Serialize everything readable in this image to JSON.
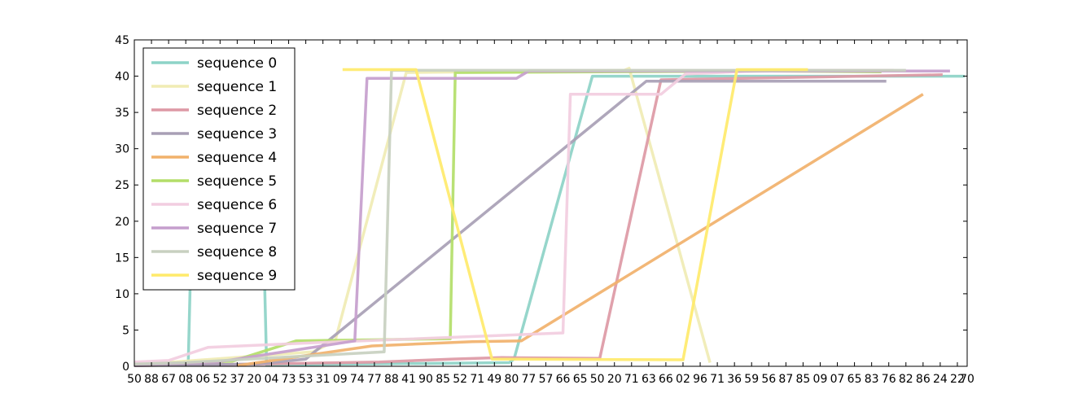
{
  "chart_data": {
    "type": "line",
    "title": "",
    "xlabel": "",
    "ylabel": "",
    "ylim": [
      0,
      45
    ],
    "yticks": [
      "0",
      "5",
      "10",
      "15",
      "20",
      "25",
      "30",
      "35",
      "40",
      "45"
    ],
    "xlim": [
      0,
      34
    ],
    "xticks": [
      "50",
      "88",
      "67",
      "08",
      "06",
      "52",
      "37",
      "20",
      "04",
      "73",
      "53",
      "31",
      "09",
      "74",
      "77",
      "88",
      "41",
      "90",
      "85",
      "52",
      "71",
      "49",
      "80",
      "77",
      "57",
      "66",
      "65",
      "50",
      "20",
      "71",
      "63",
      "66",
      "02",
      "96",
      "71",
      "36",
      "59",
      "56",
      "87",
      "85",
      "09",
      "07",
      "65",
      "83",
      "76",
      "82",
      "86",
      "24",
      "22",
      "70"
    ],
    "xtick_positions": [
      0,
      0.7,
      1.4,
      2.1,
      2.8,
      3.5,
      4.2,
      4.9,
      5.6,
      6.3,
      7.0,
      7.7,
      8.4,
      9.1,
      9.8,
      10.5,
      11.2,
      11.9,
      12.6,
      13.3,
      14.0,
      14.7,
      15.4,
      16.1,
      16.8,
      17.5,
      18.2,
      18.9,
      19.6,
      20.3,
      21.0,
      21.7,
      22.4,
      23.1,
      23.8,
      24.5,
      25.2,
      25.9,
      26.6,
      27.3,
      28.0,
      28.7,
      29.4,
      30.1,
      30.8,
      31.5,
      32.2,
      32.9,
      33.6,
      34.0
    ],
    "grid": false,
    "legend_position": "top-left",
    "series": [
      {
        "name": "sequence 0",
        "color": "#8dd3c7",
        "points": [
          [
            0,
            0.3
          ],
          [
            2.2,
            0.3
          ],
          [
            2.3,
            14
          ],
          [
            5.3,
            14
          ],
          [
            5.4,
            0.2
          ],
          [
            15.3,
            0.5
          ],
          [
            15.5,
            1.0
          ],
          [
            18.7,
            40
          ],
          [
            25,
            40
          ],
          [
            33.9,
            40
          ]
        ]
      },
      {
        "name": "sequence 1",
        "color": "#f0ecb4",
        "points": [
          [
            0,
            0.2
          ],
          [
            7.3,
            2.0
          ],
          [
            8.2,
            3.5
          ],
          [
            11.1,
            40.5
          ],
          [
            20,
            40.8
          ],
          [
            20.2,
            41.1
          ],
          [
            23.5,
            0.5
          ]
        ]
      },
      {
        "name": "sequence 2",
        "color": "#dd99a5",
        "points": [
          [
            0,
            0.1
          ],
          [
            5,
            0.3
          ],
          [
            10,
            0.6
          ],
          [
            13,
            1.0
          ],
          [
            15,
            1.2
          ],
          [
            19,
            1.1
          ],
          [
            21.5,
            39.5
          ],
          [
            33,
            40.2
          ]
        ]
      },
      {
        "name": "sequence 3",
        "color": "#a89fb5",
        "points": [
          [
            0,
            0.1
          ],
          [
            5,
            0.3
          ],
          [
            7,
            1.0
          ],
          [
            20.9,
            39.3
          ],
          [
            30.7,
            39.3
          ]
        ]
      },
      {
        "name": "sequence 4",
        "color": "#f1b16b",
        "points": [
          [
            4.2,
            0.1
          ],
          [
            9.7,
            2.8
          ],
          [
            13.8,
            3.4
          ],
          [
            15.8,
            3.5
          ],
          [
            32.2,
            37.5
          ]
        ]
      },
      {
        "name": "sequence 5",
        "color": "#b3de69",
        "points": [
          [
            0,
            0.2
          ],
          [
            4,
            0.7
          ],
          [
            6.6,
            3.5
          ],
          [
            12.9,
            3.8
          ],
          [
            13.1,
            40.5
          ],
          [
            26,
            40.7
          ],
          [
            30.5,
            40.6
          ]
        ]
      },
      {
        "name": "sequence 6",
        "color": "#f2cde0",
        "points": [
          [
            0,
            0.6
          ],
          [
            1.4,
            0.8
          ],
          [
            3.0,
            2.6
          ],
          [
            7.0,
            3.2
          ],
          [
            17.5,
            4.6
          ],
          [
            17.8,
            37.5
          ],
          [
            21.5,
            37.5
          ],
          [
            22.5,
            40.3
          ],
          [
            26.0,
            40.8
          ],
          [
            31.0,
            40.8
          ]
        ]
      },
      {
        "name": "sequence 7",
        "color": "#c59ecd",
        "points": [
          [
            0,
            0.2
          ],
          [
            3.4,
            0.6
          ],
          [
            9.0,
            3.5
          ],
          [
            9.5,
            39.7
          ],
          [
            15.6,
            39.7
          ],
          [
            16.1,
            40.7
          ],
          [
            33.3,
            40.7
          ]
        ]
      },
      {
        "name": "sequence 8",
        "color": "#c8d0c0",
        "points": [
          [
            0,
            0.3
          ],
          [
            2.0,
            0.5
          ],
          [
            10.2,
            2.0
          ],
          [
            10.5,
            40.8
          ],
          [
            28.2,
            40.8
          ],
          [
            31.5,
            40.8
          ]
        ]
      },
      {
        "name": "sequence 9",
        "color": "#ffea6b",
        "points": [
          [
            8.5,
            40.9
          ],
          [
            11.5,
            40.9
          ],
          [
            14.6,
            1.0
          ],
          [
            22.4,
            0.9
          ],
          [
            24.6,
            40.9
          ],
          [
            27.5,
            40.9
          ]
        ]
      }
    ]
  }
}
